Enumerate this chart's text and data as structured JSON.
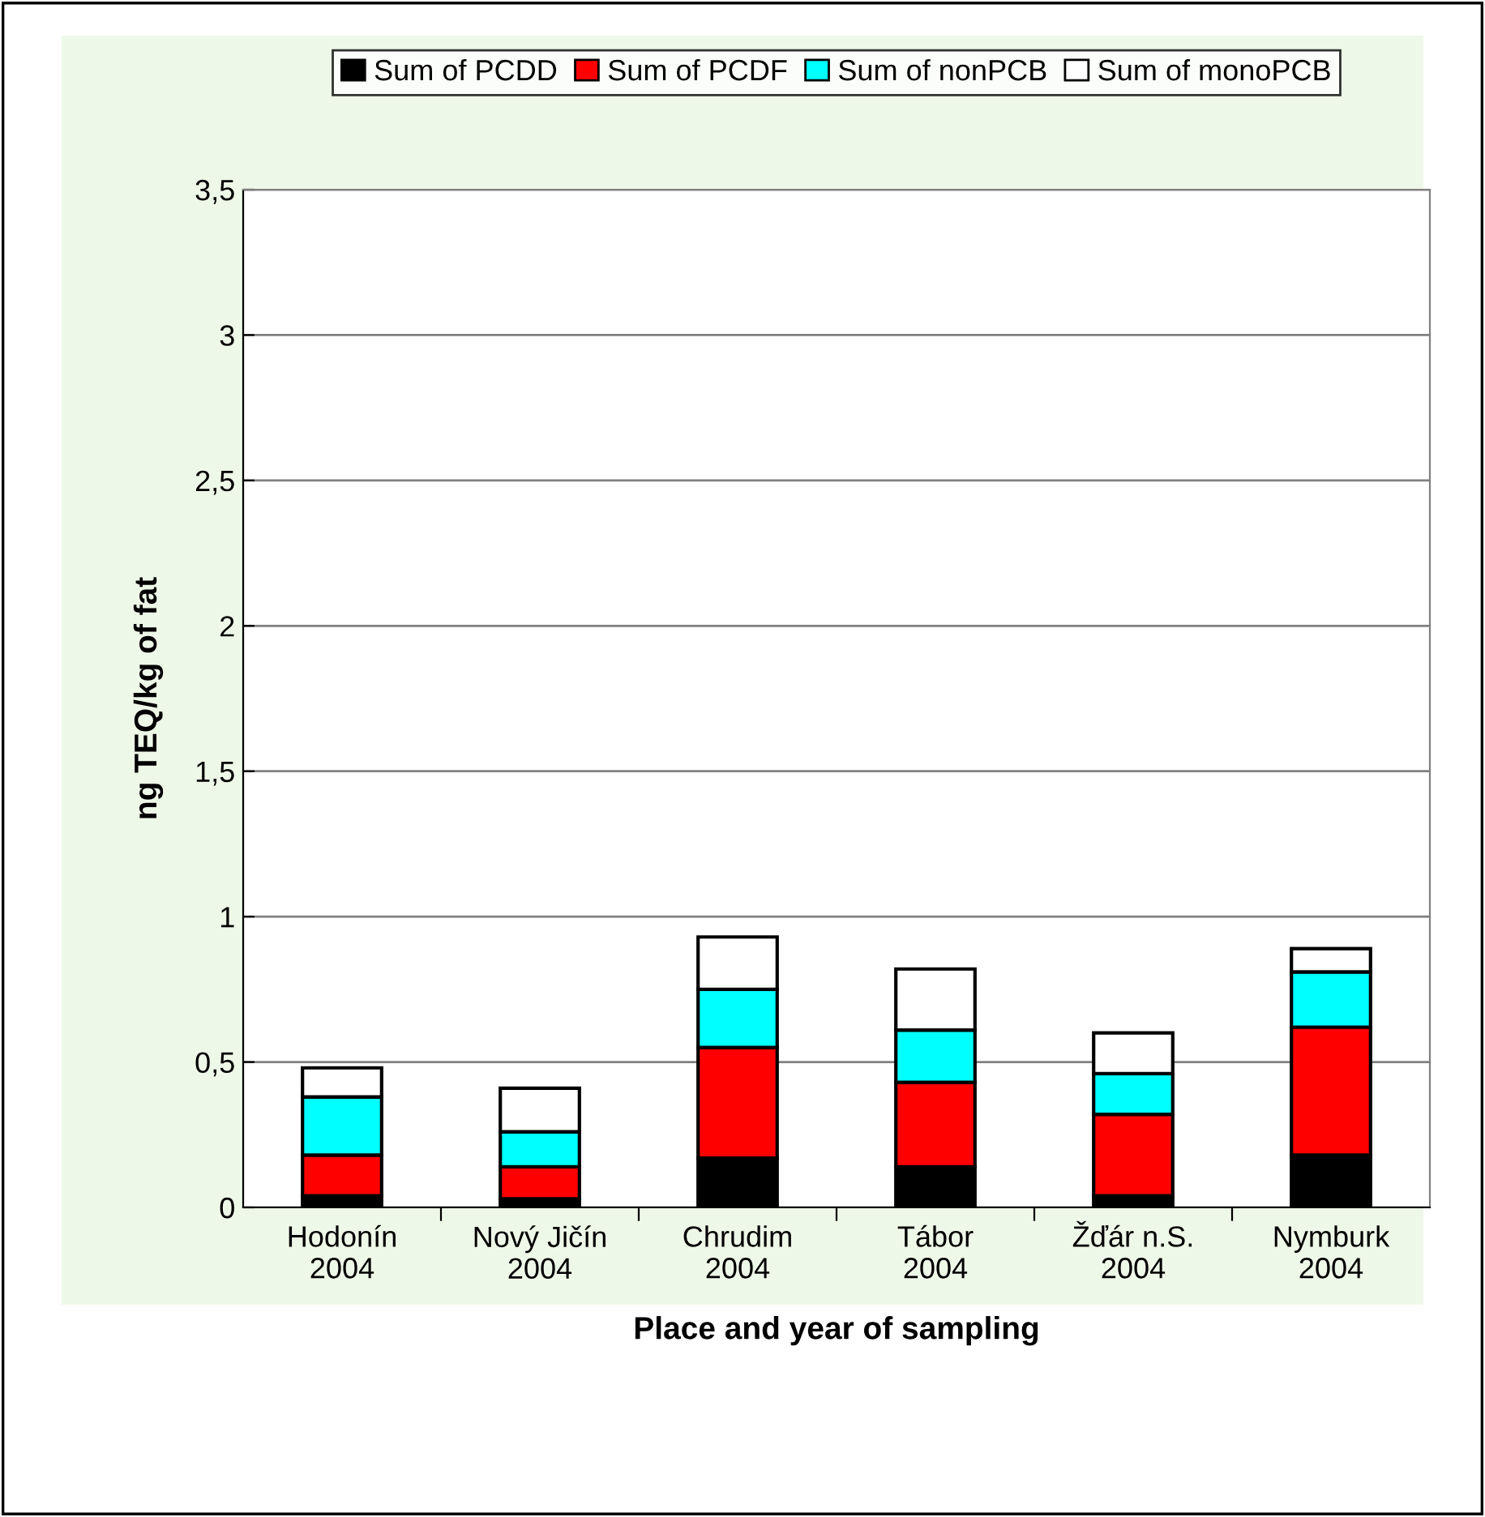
{
  "chart_data": {
    "type": "bar",
    "stacked": true,
    "xlabel": "Place and year of sampling",
    "ylabel": "ng TEQ/kg of fat",
    "categories": [
      "Hodonín\n2004",
      "Nový Jičín\n2004",
      "Chrudim\n2004",
      "Tábor\n2004",
      "Žďár n.S.\n2004",
      "Nymburk\n2004"
    ],
    "series": [
      {
        "name": "Sum of PCDD",
        "color": "#000000",
        "values": [
          0.04,
          0.03,
          0.17,
          0.14,
          0.04,
          0.18
        ]
      },
      {
        "name": "Sum of PCDF",
        "color": "#ff0000",
        "values": [
          0.14,
          0.11,
          0.38,
          0.29,
          0.28,
          0.44
        ]
      },
      {
        "name": "Sum of nonPCB",
        "color": "#00ffff",
        "values": [
          0.2,
          0.12,
          0.2,
          0.18,
          0.14,
          0.19
        ]
      },
      {
        "name": "Sum of monoPCB",
        "color": "#ffffff",
        "values": [
          0.1,
          0.15,
          0.18,
          0.21,
          0.14,
          0.08
        ]
      }
    ],
    "ylim": [
      0,
      3.5
    ],
    "yticks": [
      {
        "value": 0,
        "label": "0"
      },
      {
        "value": 0.5,
        "label": "0,5"
      },
      {
        "value": 1,
        "label": "1"
      },
      {
        "value": 1.5,
        "label": "1,5"
      },
      {
        "value": 2,
        "label": "2"
      },
      {
        "value": 2.5,
        "label": "2,5"
      },
      {
        "value": 3,
        "label": "3"
      },
      {
        "value": 3.5,
        "label": "3,5"
      }
    ],
    "grid": "y",
    "legend": "top"
  }
}
